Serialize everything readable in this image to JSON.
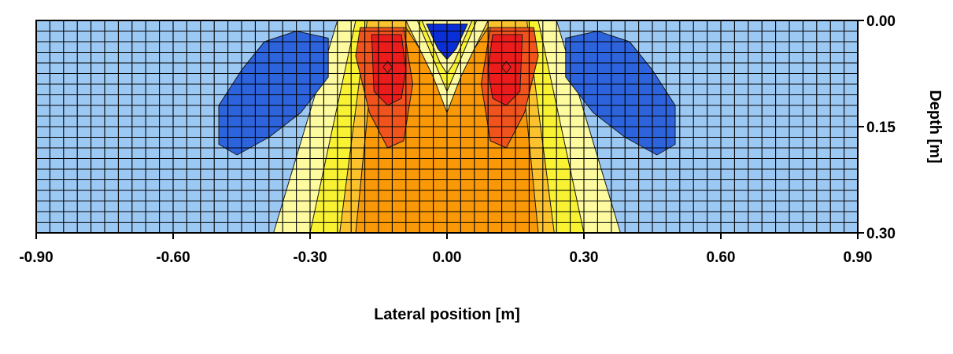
{
  "chart_data": {
    "type": "heatmap",
    "subtype": "filled-contour",
    "xlabel": "Lateral position [m]",
    "ylabel": "Depth [m]",
    "xlim": [
      -0.9,
      0.9
    ],
    "ylim": [
      0.0,
      0.3
    ],
    "y_inverted": true,
    "y_axis_side": "right",
    "xticks": [
      -0.9,
      -0.6,
      -0.3,
      0.0,
      0.3,
      0.6,
      0.9
    ],
    "xtick_labels": [
      "-0.90",
      "-0.60",
      "-0.30",
      "0.00",
      "0.30",
      "0.60",
      "0.90"
    ],
    "yticks": [
      0.0,
      0.15,
      0.3
    ],
    "ytick_labels": [
      "0.00",
      "0.15",
      "0.30"
    ],
    "grid": true,
    "grid_spacing": {
      "x": 0.03,
      "y": 0.015
    },
    "legend": "none",
    "colors": {
      "background": "#9cc8f4",
      "blue": "#2d63dc",
      "dark_blue": "#0b2fd6",
      "light_yellow": "#fdfaa0",
      "yellow": "#f8f232",
      "orange_light": "#fbc22e",
      "orange": "#f99908",
      "red_orange": "#f0531c",
      "red": "#ed1c1c"
    },
    "regions": [
      {
        "level": "light_yellow",
        "points": [
          [
            -0.24,
            0.0
          ],
          [
            0.24,
            0.0
          ],
          [
            0.38,
            0.3
          ],
          [
            -0.38,
            0.3
          ]
        ]
      },
      {
        "level": "yellow",
        "points": [
          [
            -0.2,
            0.0
          ],
          [
            0.2,
            0.0
          ],
          [
            0.3,
            0.3
          ],
          [
            -0.3,
            0.3
          ]
        ]
      },
      {
        "level": "orange_light",
        "points": [
          [
            -0.175,
            0.0
          ],
          [
            0.175,
            0.0
          ],
          [
            0.235,
            0.3
          ],
          [
            -0.235,
            0.3
          ]
        ]
      },
      {
        "level": "orange",
        "points": [
          [
            -0.155,
            0.01
          ],
          [
            -0.09,
            0.01
          ],
          [
            -0.03,
            0.07
          ],
          [
            0.0,
            0.08
          ],
          [
            0.03,
            0.07
          ],
          [
            0.09,
            0.01
          ],
          [
            0.155,
            0.01
          ],
          [
            0.2,
            0.3
          ],
          [
            -0.2,
            0.3
          ]
        ]
      },
      {
        "level": "light_yellow",
        "points": [
          [
            -0.09,
            0.0
          ],
          [
            0.09,
            0.0
          ],
          [
            0.03,
            0.08
          ],
          [
            0.0,
            0.13
          ],
          [
            -0.03,
            0.08
          ]
        ]
      },
      {
        "level": "yellow",
        "points": [
          [
            -0.065,
            0.0
          ],
          [
            0.065,
            0.0
          ],
          [
            0.02,
            0.07
          ],
          [
            0.0,
            0.1
          ],
          [
            -0.02,
            0.07
          ]
        ]
      },
      {
        "level": "light_yellow",
        "points": [
          [
            -0.055,
            0.0
          ],
          [
            0.055,
            0.0
          ],
          [
            0.015,
            0.06
          ],
          [
            0.0,
            0.075
          ],
          [
            -0.015,
            0.06
          ]
        ]
      },
      {
        "level": "dark_blue",
        "points": [
          [
            -0.045,
            0.005
          ],
          [
            0.045,
            0.005
          ],
          [
            0.02,
            0.04
          ],
          [
            0.0,
            0.055
          ],
          [
            -0.02,
            0.04
          ]
        ]
      },
      {
        "level": "red_orange",
        "points": [
          [
            -0.19,
            0.01
          ],
          [
            -0.095,
            0.01
          ],
          [
            -0.075,
            0.09
          ],
          [
            -0.095,
            0.17
          ],
          [
            -0.13,
            0.18
          ],
          [
            -0.17,
            0.13
          ],
          [
            -0.2,
            0.05
          ]
        ]
      },
      {
        "level": "red_orange",
        "points": [
          [
            0.19,
            0.01
          ],
          [
            0.095,
            0.01
          ],
          [
            0.075,
            0.09
          ],
          [
            0.095,
            0.17
          ],
          [
            0.13,
            0.18
          ],
          [
            0.17,
            0.13
          ],
          [
            0.2,
            0.05
          ]
        ]
      },
      {
        "level": "red",
        "points": [
          [
            -0.165,
            0.02
          ],
          [
            -0.1,
            0.02
          ],
          [
            -0.09,
            0.07
          ],
          [
            -0.1,
            0.11
          ],
          [
            -0.13,
            0.12
          ],
          [
            -0.16,
            0.1
          ]
        ]
      },
      {
        "level": "red",
        "points": [
          [
            0.165,
            0.02
          ],
          [
            0.1,
            0.02
          ],
          [
            0.09,
            0.07
          ],
          [
            0.1,
            0.11
          ],
          [
            0.13,
            0.12
          ],
          [
            0.16,
            0.1
          ]
        ]
      },
      {
        "level": "red",
        "points": [
          [
            -0.13,
            0.058
          ],
          [
            -0.12,
            0.066
          ],
          [
            -0.13,
            0.074
          ],
          [
            -0.14,
            0.066
          ]
        ]
      },
      {
        "level": "red",
        "points": [
          [
            0.13,
            0.058
          ],
          [
            0.14,
            0.066
          ],
          [
            0.13,
            0.074
          ],
          [
            0.12,
            0.066
          ]
        ]
      },
      {
        "level": "blue",
        "points": [
          [
            -0.26,
            0.025
          ],
          [
            -0.33,
            0.015
          ],
          [
            -0.4,
            0.03
          ],
          [
            -0.45,
            0.07
          ],
          [
            -0.5,
            0.12
          ],
          [
            -0.5,
            0.175
          ],
          [
            -0.46,
            0.19
          ],
          [
            -0.39,
            0.165
          ],
          [
            -0.32,
            0.13
          ],
          [
            -0.26,
            0.08
          ]
        ]
      },
      {
        "level": "blue",
        "points": [
          [
            0.26,
            0.025
          ],
          [
            0.33,
            0.015
          ],
          [
            0.4,
            0.03
          ],
          [
            0.45,
            0.07
          ],
          [
            0.5,
            0.12
          ],
          [
            0.5,
            0.175
          ],
          [
            0.46,
            0.19
          ],
          [
            0.39,
            0.165
          ],
          [
            0.32,
            0.13
          ],
          [
            0.26,
            0.08
          ]
        ]
      }
    ]
  }
}
